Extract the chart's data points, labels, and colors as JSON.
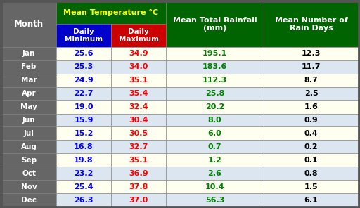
{
  "months": [
    "Jan",
    "Feb",
    "Mar",
    "Apr",
    "May",
    "Jun",
    "Jul",
    "Aug",
    "Sep",
    "Oct",
    "Nov",
    "Dec"
  ],
  "daily_min": [
    "25.6",
    "25.3",
    "24.9",
    "22.7",
    "19.0",
    "15.9",
    "15.2",
    "16.8",
    "19.8",
    "23.2",
    "25.4",
    "26.3"
  ],
  "daily_max": [
    "34.9",
    "34.0",
    "35.1",
    "35.4",
    "32.4",
    "30.4",
    "30.5",
    "32.7",
    "35.1",
    "36.9",
    "37.8",
    "37.0"
  ],
  "rainfall": [
    "195.1",
    "183.6",
    "112.3",
    "25.8",
    "20.2",
    "8.0",
    "6.0",
    "0.7",
    "1.2",
    "2.6",
    "10.4",
    "56.3"
  ],
  "rain_days": [
    "12.3",
    "11.7",
    "8.7",
    "2.5",
    "1.6",
    "0.9",
    "0.4",
    "0.2",
    "0.1",
    "0.8",
    "1.5",
    "6.1"
  ],
  "green_bg": "#006400",
  "blue_bg": "#0000cc",
  "red_bg": "#cc0000",
  "gray_bg": "#666666",
  "white": "#ffffff",
  "yellow": "#ffff00",
  "blue_text": "#0000ff",
  "red_text": "#ff0000",
  "green_text": "#008000",
  "black_text": "#000000",
  "row_odd": "#fffff0",
  "row_even": "#dce6f1",
  "border": "#555555",
  "fig_w": 5.12,
  "fig_h": 2.96,
  "dpi": 100
}
